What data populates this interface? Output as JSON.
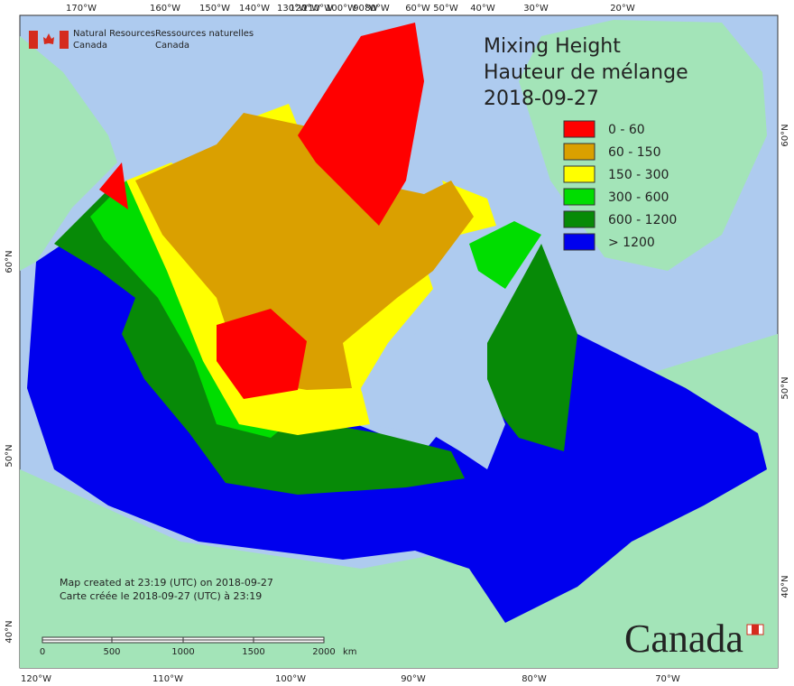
{
  "header": {
    "org_en": [
      "Natural Resources",
      "Canada"
    ],
    "org_fr": [
      "Ressources naturelles",
      "Canada"
    ],
    "wordmark": "Canada"
  },
  "title": [
    "Mixing Height",
    "Hauteur de mélange",
    "2018-09-27"
  ],
  "legend": [
    {
      "label": "0 - 60",
      "color": "#ff0000"
    },
    {
      "label": "60 - 150",
      "color": "#daa000"
    },
    {
      "label": "150 - 300",
      "color": "#ffff00"
    },
    {
      "label": "300 - 600",
      "color": "#00dd00"
    },
    {
      "label": "600 - 1200",
      "color": "#078a07"
    },
    {
      "label": "> 1200",
      "color": "#0000ee"
    }
  ],
  "footnote": [
    "Map created at 23:19 (UTC) on 2018-09-27",
    "Carte créée le 2018-09-27 (UTC) à 23:19"
  ],
  "scale": {
    "labels": [
      "0",
      "500",
      "1000",
      "1500",
      "2000"
    ],
    "unit": "km"
  },
  "top_labels": [
    "170°W",
    "160°W",
    "150°W",
    "140°W",
    "130°W",
    "120°W",
    "110°W",
    "100°W",
    "90°W",
    "80°W",
    "60°W",
    "50°W",
    "40°W",
    "30°W",
    "20°W"
  ],
  "bottom_labels": [
    "120°W",
    "110°W",
    "100°W",
    "90°W",
    "80°W",
    "70°W"
  ],
  "left_labels": [
    "60°N",
    "50°N",
    "40°N"
  ],
  "right_labels": [
    "60°N",
    "50°N",
    "40°N"
  ]
}
